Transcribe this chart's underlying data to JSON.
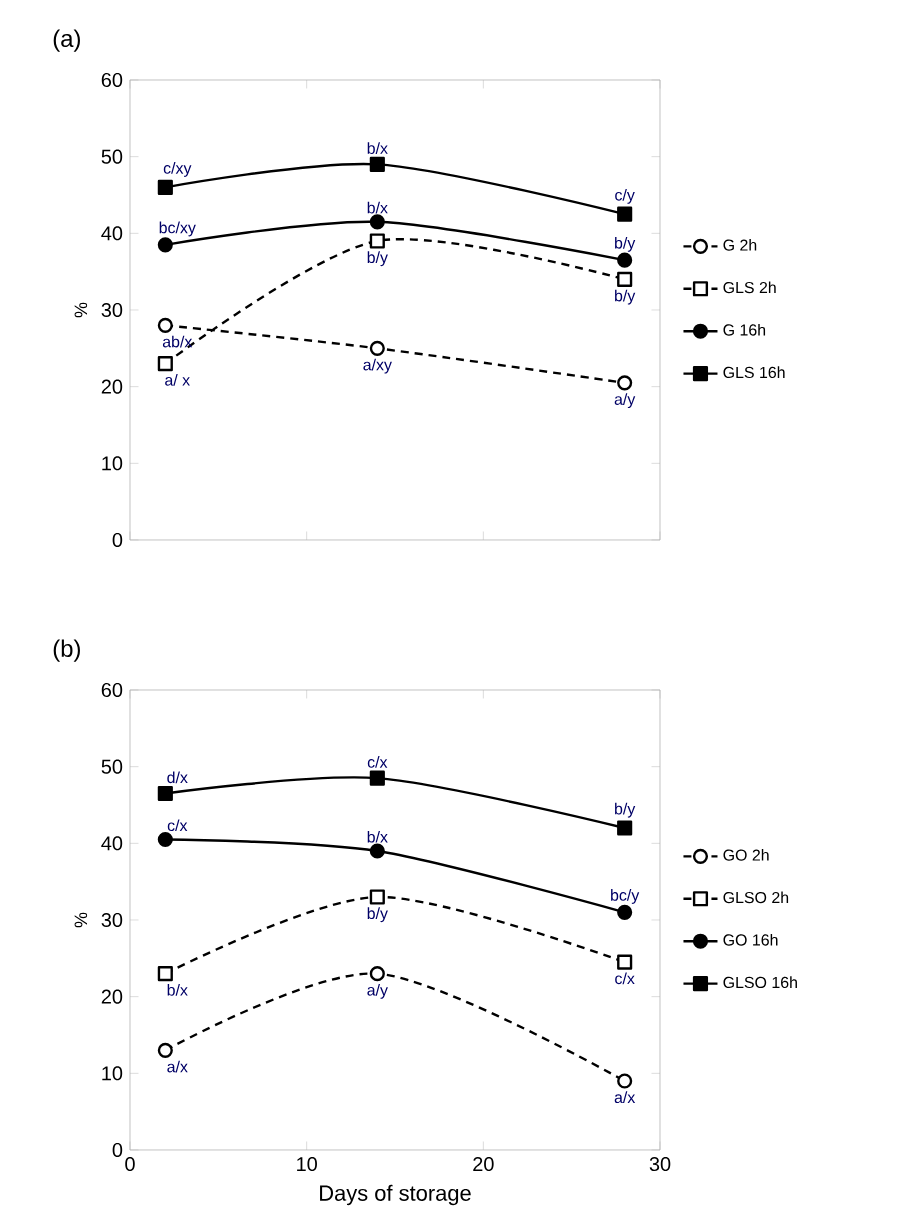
{
  "chart_data": [
    {
      "type": "line",
      "title": "(a)",
      "ylabel": "%",
      "x": [
        2,
        14,
        28
      ],
      "xlim": [
        0,
        30
      ],
      "xticks": [
        0,
        10,
        20,
        30
      ],
      "ylim": [
        0,
        60
      ],
      "yticks": [
        0,
        10,
        20,
        30,
        40,
        50,
        60
      ],
      "tick_labels": "y",
      "legend": "right",
      "series": [
        {
          "name": "G 2h",
          "color": "#000000",
          "marker": "circle",
          "line_style": "dashed",
          "values": [
            28,
            25,
            20.5
          ]
        },
        {
          "name": "GLS 2h",
          "color": "#000000",
          "marker": "square",
          "line_style": "dashed",
          "values": [
            23,
            39,
            34
          ]
        },
        {
          "name": "G 16h",
          "color": "#000000",
          "marker": "circle",
          "line_style": "solid",
          "values": [
            38.5,
            41.5,
            36.5
          ]
        },
        {
          "name": "GLS 16h",
          "color": "#000000",
          "marker": "square",
          "line_style": "solid",
          "values": [
            46,
            49,
            42.5
          ]
        }
      ],
      "annotations": [
        {
          "text": "c/xy",
          "x": 2,
          "y": 46
        },
        {
          "text": "bc/xy",
          "x": 2,
          "y": 38.5
        },
        {
          "text": "ab/x",
          "x": 2,
          "y": 28
        },
        {
          "text": "a/ x",
          "x": 2,
          "y": 23
        },
        {
          "text": "b/x",
          "x": 14,
          "y": 49
        },
        {
          "text": "b/x",
          "x": 14,
          "y": 41.5
        },
        {
          "text": "b/y",
          "x": 14,
          "y": 39
        },
        {
          "text": "a/xy",
          "x": 14,
          "y": 25
        },
        {
          "text": "c/y",
          "x": 28,
          "y": 42.5
        },
        {
          "text": "b/y",
          "x": 28,
          "y": 36.5
        },
        {
          "text": "b/y",
          "x": 28,
          "y": 34
        },
        {
          "text": "a/y",
          "x": 28,
          "y": 20.5
        }
      ]
    },
    {
      "type": "line",
      "title": "(b)",
      "ylabel": "%",
      "xlabel": "Days of storage",
      "x": [
        2,
        14,
        28
      ],
      "xlim": [
        0,
        30
      ],
      "xticks": [
        0,
        10,
        20,
        30
      ],
      "ylim": [
        0,
        60
      ],
      "yticks": [
        0,
        10,
        20,
        30,
        40,
        50,
        60
      ],
      "legend": "right",
      "series": [
        {
          "name": "GO 2h",
          "color": "#000000",
          "marker": "circle",
          "line_style": "dashed",
          "values": [
            13,
            23,
            9
          ]
        },
        {
          "name": "GLSO 2h",
          "color": "#000000",
          "marker": "square",
          "line_style": "dashed",
          "values": [
            23,
            33,
            24.5
          ]
        },
        {
          "name": "GO 16h",
          "color": "#000000",
          "marker": "circle",
          "line_style": "solid",
          "values": [
            40.5,
            39,
            31
          ]
        },
        {
          "name": "GLSO 16h",
          "color": "#000000",
          "marker": "square",
          "line_style": "solid",
          "values": [
            46.5,
            48.5,
            42
          ]
        }
      ],
      "annotations": [
        {
          "text": "d/x",
          "x": 2,
          "y": 46.5
        },
        {
          "text": "c/x",
          "x": 2,
          "y": 40.5
        },
        {
          "text": "b/x",
          "x": 2,
          "y": 23
        },
        {
          "text": "a/x",
          "x": 2,
          "y": 13
        },
        {
          "text": "c/x",
          "x": 14,
          "y": 48.5
        },
        {
          "text": "b/x",
          "x": 14,
          "y": 39
        },
        {
          "text": "b/y",
          "x": 14,
          "y": 33
        },
        {
          "text": "a/y",
          "x": 14,
          "y": 23
        },
        {
          "text": "b/y",
          "x": 28,
          "y": 42
        },
        {
          "text": "bc/y",
          "x": 28,
          "y": 31
        },
        {
          "text": "c/x",
          "x": 28,
          "y": 24.5
        },
        {
          "text": "a/x",
          "x": 28,
          "y": 9
        }
      ]
    }
  ]
}
